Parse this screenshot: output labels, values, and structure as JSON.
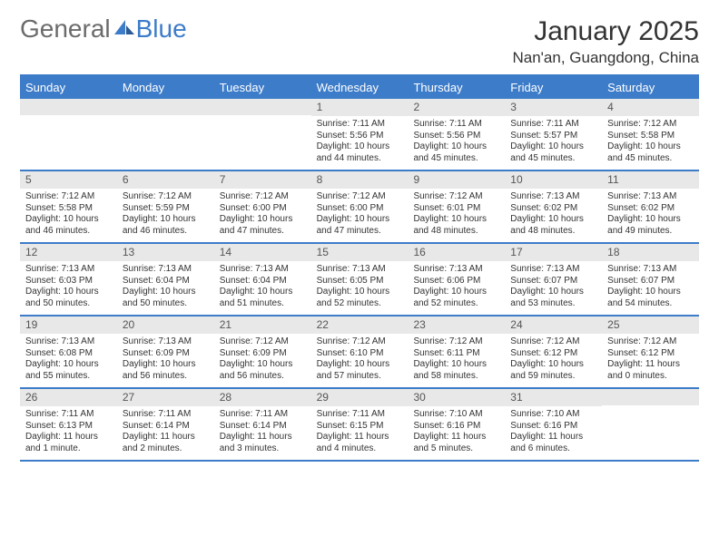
{
  "logo": {
    "text1": "General",
    "text2": "Blue"
  },
  "title": "January 2025",
  "location": "Nan'an, Guangdong, China",
  "colors": {
    "header_blue": "#3d7cc9",
    "daynum_bg": "#e8e8e8",
    "logo_gray": "#6b6b6b",
    "text": "#333333"
  },
  "weekdays": [
    "Sunday",
    "Monday",
    "Tuesday",
    "Wednesday",
    "Thursday",
    "Friday",
    "Saturday"
  ],
  "weeks": [
    [
      {
        "n": "",
        "sr": "",
        "ss": "",
        "dl": ""
      },
      {
        "n": "",
        "sr": "",
        "ss": "",
        "dl": ""
      },
      {
        "n": "",
        "sr": "",
        "ss": "",
        "dl": ""
      },
      {
        "n": "1",
        "sr": "Sunrise: 7:11 AM",
        "ss": "Sunset: 5:56 PM",
        "dl": "Daylight: 10 hours and 44 minutes."
      },
      {
        "n": "2",
        "sr": "Sunrise: 7:11 AM",
        "ss": "Sunset: 5:56 PM",
        "dl": "Daylight: 10 hours and 45 minutes."
      },
      {
        "n": "3",
        "sr": "Sunrise: 7:11 AM",
        "ss": "Sunset: 5:57 PM",
        "dl": "Daylight: 10 hours and 45 minutes."
      },
      {
        "n": "4",
        "sr": "Sunrise: 7:12 AM",
        "ss": "Sunset: 5:58 PM",
        "dl": "Daylight: 10 hours and 45 minutes."
      }
    ],
    [
      {
        "n": "5",
        "sr": "Sunrise: 7:12 AM",
        "ss": "Sunset: 5:58 PM",
        "dl": "Daylight: 10 hours and 46 minutes."
      },
      {
        "n": "6",
        "sr": "Sunrise: 7:12 AM",
        "ss": "Sunset: 5:59 PM",
        "dl": "Daylight: 10 hours and 46 minutes."
      },
      {
        "n": "7",
        "sr": "Sunrise: 7:12 AM",
        "ss": "Sunset: 6:00 PM",
        "dl": "Daylight: 10 hours and 47 minutes."
      },
      {
        "n": "8",
        "sr": "Sunrise: 7:12 AM",
        "ss": "Sunset: 6:00 PM",
        "dl": "Daylight: 10 hours and 47 minutes."
      },
      {
        "n": "9",
        "sr": "Sunrise: 7:12 AM",
        "ss": "Sunset: 6:01 PM",
        "dl": "Daylight: 10 hours and 48 minutes."
      },
      {
        "n": "10",
        "sr": "Sunrise: 7:13 AM",
        "ss": "Sunset: 6:02 PM",
        "dl": "Daylight: 10 hours and 48 minutes."
      },
      {
        "n": "11",
        "sr": "Sunrise: 7:13 AM",
        "ss": "Sunset: 6:02 PM",
        "dl": "Daylight: 10 hours and 49 minutes."
      }
    ],
    [
      {
        "n": "12",
        "sr": "Sunrise: 7:13 AM",
        "ss": "Sunset: 6:03 PM",
        "dl": "Daylight: 10 hours and 50 minutes."
      },
      {
        "n": "13",
        "sr": "Sunrise: 7:13 AM",
        "ss": "Sunset: 6:04 PM",
        "dl": "Daylight: 10 hours and 50 minutes."
      },
      {
        "n": "14",
        "sr": "Sunrise: 7:13 AM",
        "ss": "Sunset: 6:04 PM",
        "dl": "Daylight: 10 hours and 51 minutes."
      },
      {
        "n": "15",
        "sr": "Sunrise: 7:13 AM",
        "ss": "Sunset: 6:05 PM",
        "dl": "Daylight: 10 hours and 52 minutes."
      },
      {
        "n": "16",
        "sr": "Sunrise: 7:13 AM",
        "ss": "Sunset: 6:06 PM",
        "dl": "Daylight: 10 hours and 52 minutes."
      },
      {
        "n": "17",
        "sr": "Sunrise: 7:13 AM",
        "ss": "Sunset: 6:07 PM",
        "dl": "Daylight: 10 hours and 53 minutes."
      },
      {
        "n": "18",
        "sr": "Sunrise: 7:13 AM",
        "ss": "Sunset: 6:07 PM",
        "dl": "Daylight: 10 hours and 54 minutes."
      }
    ],
    [
      {
        "n": "19",
        "sr": "Sunrise: 7:13 AM",
        "ss": "Sunset: 6:08 PM",
        "dl": "Daylight: 10 hours and 55 minutes."
      },
      {
        "n": "20",
        "sr": "Sunrise: 7:13 AM",
        "ss": "Sunset: 6:09 PM",
        "dl": "Daylight: 10 hours and 56 minutes."
      },
      {
        "n": "21",
        "sr": "Sunrise: 7:12 AM",
        "ss": "Sunset: 6:09 PM",
        "dl": "Daylight: 10 hours and 56 minutes."
      },
      {
        "n": "22",
        "sr": "Sunrise: 7:12 AM",
        "ss": "Sunset: 6:10 PM",
        "dl": "Daylight: 10 hours and 57 minutes."
      },
      {
        "n": "23",
        "sr": "Sunrise: 7:12 AM",
        "ss": "Sunset: 6:11 PM",
        "dl": "Daylight: 10 hours and 58 minutes."
      },
      {
        "n": "24",
        "sr": "Sunrise: 7:12 AM",
        "ss": "Sunset: 6:12 PM",
        "dl": "Daylight: 10 hours and 59 minutes."
      },
      {
        "n": "25",
        "sr": "Sunrise: 7:12 AM",
        "ss": "Sunset: 6:12 PM",
        "dl": "Daylight: 11 hours and 0 minutes."
      }
    ],
    [
      {
        "n": "26",
        "sr": "Sunrise: 7:11 AM",
        "ss": "Sunset: 6:13 PM",
        "dl": "Daylight: 11 hours and 1 minute."
      },
      {
        "n": "27",
        "sr": "Sunrise: 7:11 AM",
        "ss": "Sunset: 6:14 PM",
        "dl": "Daylight: 11 hours and 2 minutes."
      },
      {
        "n": "28",
        "sr": "Sunrise: 7:11 AM",
        "ss": "Sunset: 6:14 PM",
        "dl": "Daylight: 11 hours and 3 minutes."
      },
      {
        "n": "29",
        "sr": "Sunrise: 7:11 AM",
        "ss": "Sunset: 6:15 PM",
        "dl": "Daylight: 11 hours and 4 minutes."
      },
      {
        "n": "30",
        "sr": "Sunrise: 7:10 AM",
        "ss": "Sunset: 6:16 PM",
        "dl": "Daylight: 11 hours and 5 minutes."
      },
      {
        "n": "31",
        "sr": "Sunrise: 7:10 AM",
        "ss": "Sunset: 6:16 PM",
        "dl": "Daylight: 11 hours and 6 minutes."
      },
      {
        "n": "",
        "sr": "",
        "ss": "",
        "dl": ""
      }
    ]
  ]
}
